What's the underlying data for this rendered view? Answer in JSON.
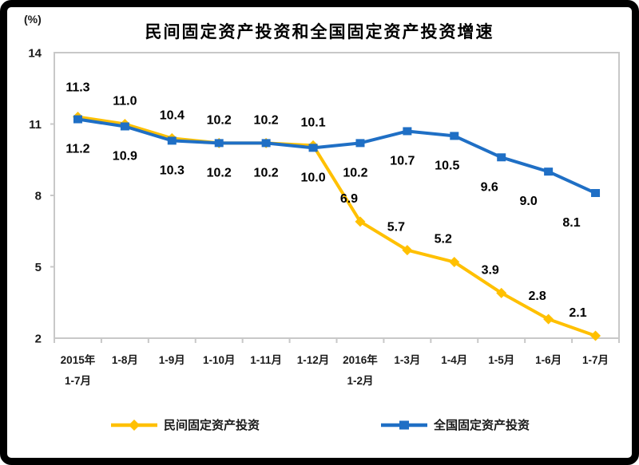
{
  "frame": {
    "border_color": "#000000",
    "background": "#ffffff"
  },
  "chart_data": {
    "type": "line",
    "title": "民间固定资产投资和全国固定资产投资增速",
    "unit_label": "(%)",
    "xlabel": "",
    "ylabel": "(%)",
    "ylim": [
      2,
      14
    ],
    "y_ticks": [
      14,
      11,
      8,
      5,
      2
    ],
    "grid": false,
    "legend_position": "bottom",
    "categories": [
      [
        "2015年",
        "1-7月"
      ],
      [
        "1-8月"
      ],
      [
        "1-9月"
      ],
      [
        "1-10月"
      ],
      [
        "1-11月"
      ],
      [
        "1-12月"
      ],
      [
        "2016年",
        "1-2月"
      ],
      [
        "1-3月"
      ],
      [
        "1-4月"
      ],
      [
        "1-5月"
      ],
      [
        "1-6月"
      ],
      [
        "1-7月"
      ]
    ],
    "series": [
      {
        "name": "民间固定资产投资",
        "color": "#FFC000",
        "marker": "diamond",
        "label_position": "above",
        "values": [
          11.3,
          11.0,
          10.4,
          10.2,
          10.2,
          10.1,
          6.9,
          5.7,
          5.2,
          3.9,
          2.8,
          2.1
        ],
        "labels": [
          "11.3",
          "11.0",
          "10.4",
          "10.2",
          "10.2",
          "10.1",
          "6.9",
          "5.7",
          "5.2",
          "3.9",
          "2.8",
          "2.1"
        ]
      },
      {
        "name": "全国固定资产投资",
        "color": "#1F6FC5",
        "marker": "square",
        "label_position": "below",
        "values": [
          11.2,
          10.9,
          10.3,
          10.2,
          10.2,
          10.0,
          10.2,
          10.7,
          10.5,
          9.6,
          9.0,
          8.1
        ],
        "labels": [
          "11.2",
          "10.9",
          "10.3",
          "10.2",
          "10.2",
          "10.0",
          "10.2",
          "10.7",
          "10.5",
          "9.6",
          "9.0",
          "8.1"
        ]
      }
    ]
  }
}
